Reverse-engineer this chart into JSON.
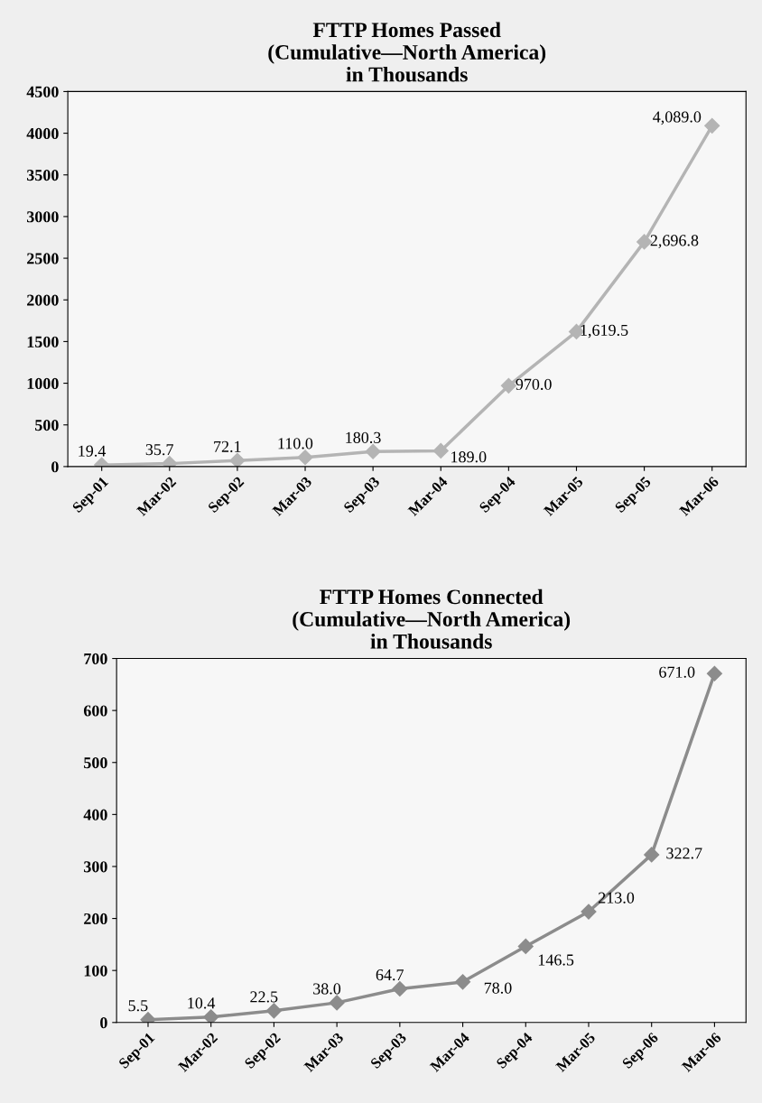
{
  "chart_data": [
    {
      "type": "line",
      "title": "FTTP Homes Passed\n(Cumulative—North America)\nin Thousands",
      "categories": [
        "Sep-01",
        "Mar-02",
        "Sep-02",
        "Mar-03",
        "Sep-03",
        "Mar-04",
        "Sep-04",
        "Mar-05",
        "Sep-05",
        "Mar-06"
      ],
      "series": [
        {
          "color": "#b4b4b4",
          "values": [
            19.4,
            35.7,
            72.1,
            110.0,
            180.3,
            189.0,
            970.0,
            1619.5,
            2696.8,
            4089.0
          ]
        }
      ],
      "value_labels": [
        "19.4",
        "35.7",
        "72.1",
        "110.0",
        "180.3",
        "189.0",
        "970.0",
        "1,619.5",
        "2,696.8",
        "4,089.0"
      ],
      "ylim": [
        0,
        4500
      ],
      "yticks": [
        0,
        500,
        1000,
        1500,
        2000,
        2500,
        3000,
        3500,
        4000,
        4500
      ],
      "marker": "diamond",
      "line_style": "solid",
      "grid": false,
      "legend": false
    },
    {
      "type": "line",
      "title": "FTTP Homes Connected\n(Cumulative—North America)\nin Thousands",
      "categories": [
        "Sep-01",
        "Mar-02",
        "Sep-02",
        "Mar-03",
        "Sep-03",
        "Mar-04",
        "Sep-04",
        "Mar-05",
        "Sep-06",
        "Mar-06"
      ],
      "series": [
        {
          "color": "#8c8c8c",
          "values": [
            5.5,
            10.4,
            22.5,
            38.0,
            64.7,
            78.0,
            146.5,
            213.0,
            322.7,
            671.0
          ]
        }
      ],
      "value_labels": [
        "5.5",
        "10.4",
        "22.5",
        "38.0",
        "64.7",
        "78.0",
        "146.5",
        "213.0",
        "322.7",
        "671.0"
      ],
      "ylim": [
        0,
        700
      ],
      "yticks": [
        0,
        100,
        200,
        300,
        400,
        500,
        600,
        700
      ],
      "marker": "diamond",
      "line_style": "solid",
      "grid": false,
      "legend": false
    }
  ]
}
